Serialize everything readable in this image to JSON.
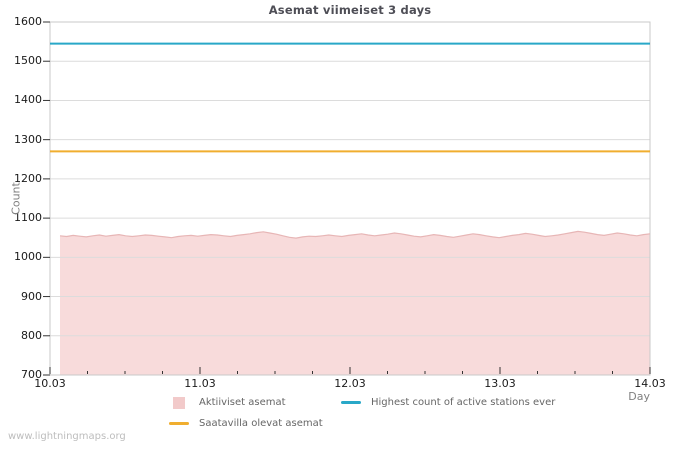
{
  "title": "Asemat viimeiset 3 days",
  "watermark": "www.lightningmaps.org",
  "colors": {
    "title": "#4e4e56",
    "grid": "#dcdcdc",
    "plot_border": "#c9c9c9",
    "tick": "#333333",
    "tick_label": "#1a1a1a",
    "axis_title": "#808080",
    "legend_text": "#666666",
    "watermark_text": "#bdbdbd",
    "area_fill": "#f8dbdb",
    "area_stroke": "#e7b6b6",
    "available_line": "#f0ae2f",
    "highest_line": "#29a8c8"
  },
  "chart_data": {
    "type": "area",
    "title": "Asemat viimeiset 3 days",
    "xlabel": "Day",
    "ylabel": "Count",
    "ylim": [
      700,
      1600
    ],
    "yticks": [
      700,
      800,
      900,
      1000,
      1100,
      1200,
      1300,
      1400,
      1500,
      1600
    ],
    "xtick_labels": [
      "10.03",
      "11.03",
      "12.03",
      "13.03",
      "14.03"
    ],
    "xtick_days": [
      0,
      1,
      2,
      3,
      4
    ],
    "x_total_days": 4,
    "minor_tick_step_days": 0.25,
    "grid": "horizontal",
    "legend_position": "bottom",
    "series": [
      {
        "name": "Aktiiviset asemat",
        "type": "area",
        "color_fill": "#f8dbdb",
        "color_stroke": "#e7b6b6",
        "x_start_day": 0.067,
        "x_end_day": 4.0,
        "values": [
          1055,
          1053,
          1056,
          1054,
          1052,
          1055,
          1057,
          1054,
          1056,
          1058,
          1055,
          1053,
          1055,
          1057,
          1056,
          1054,
          1052,
          1050,
          1053,
          1055,
          1056,
          1054,
          1056,
          1058,
          1057,
          1055,
          1053,
          1056,
          1058,
          1060,
          1063,
          1065,
          1062,
          1059,
          1055,
          1051,
          1049,
          1052,
          1054,
          1053,
          1055,
          1057,
          1055,
          1053,
          1056,
          1058,
          1060,
          1057,
          1055,
          1057,
          1059,
          1062,
          1060,
          1057,
          1054,
          1052,
          1055,
          1058,
          1056,
          1053,
          1051,
          1054,
          1057,
          1060,
          1058,
          1055,
          1052,
          1050,
          1053,
          1056,
          1058,
          1061,
          1059,
          1056,
          1053,
          1055,
          1057,
          1060,
          1063,
          1066,
          1064,
          1061,
          1058,
          1056,
          1059,
          1062,
          1060,
          1057,
          1055,
          1058,
          1060
        ]
      },
      {
        "name": "Saatavilla olevat asemat",
        "type": "hline",
        "value": 1270,
        "color": "#f0ae2f"
      },
      {
        "name": "Highest count of active stations ever",
        "type": "hline",
        "value": 1545,
        "color": "#29a8c8"
      }
    ]
  },
  "legend": {
    "items": [
      {
        "label": "Aktiiviset asemat",
        "swatch": "square",
        "color": "#f2caca",
        "icon": "area-swatch-icon"
      },
      {
        "label": "Saatavilla olevat asemat",
        "swatch": "line",
        "color": "#f0ae2f",
        "icon": "line-swatch-icon"
      },
      {
        "label": "Highest count of active stations ever",
        "swatch": "line",
        "color": "#29a8c8",
        "icon": "line-swatch-icon"
      }
    ]
  }
}
